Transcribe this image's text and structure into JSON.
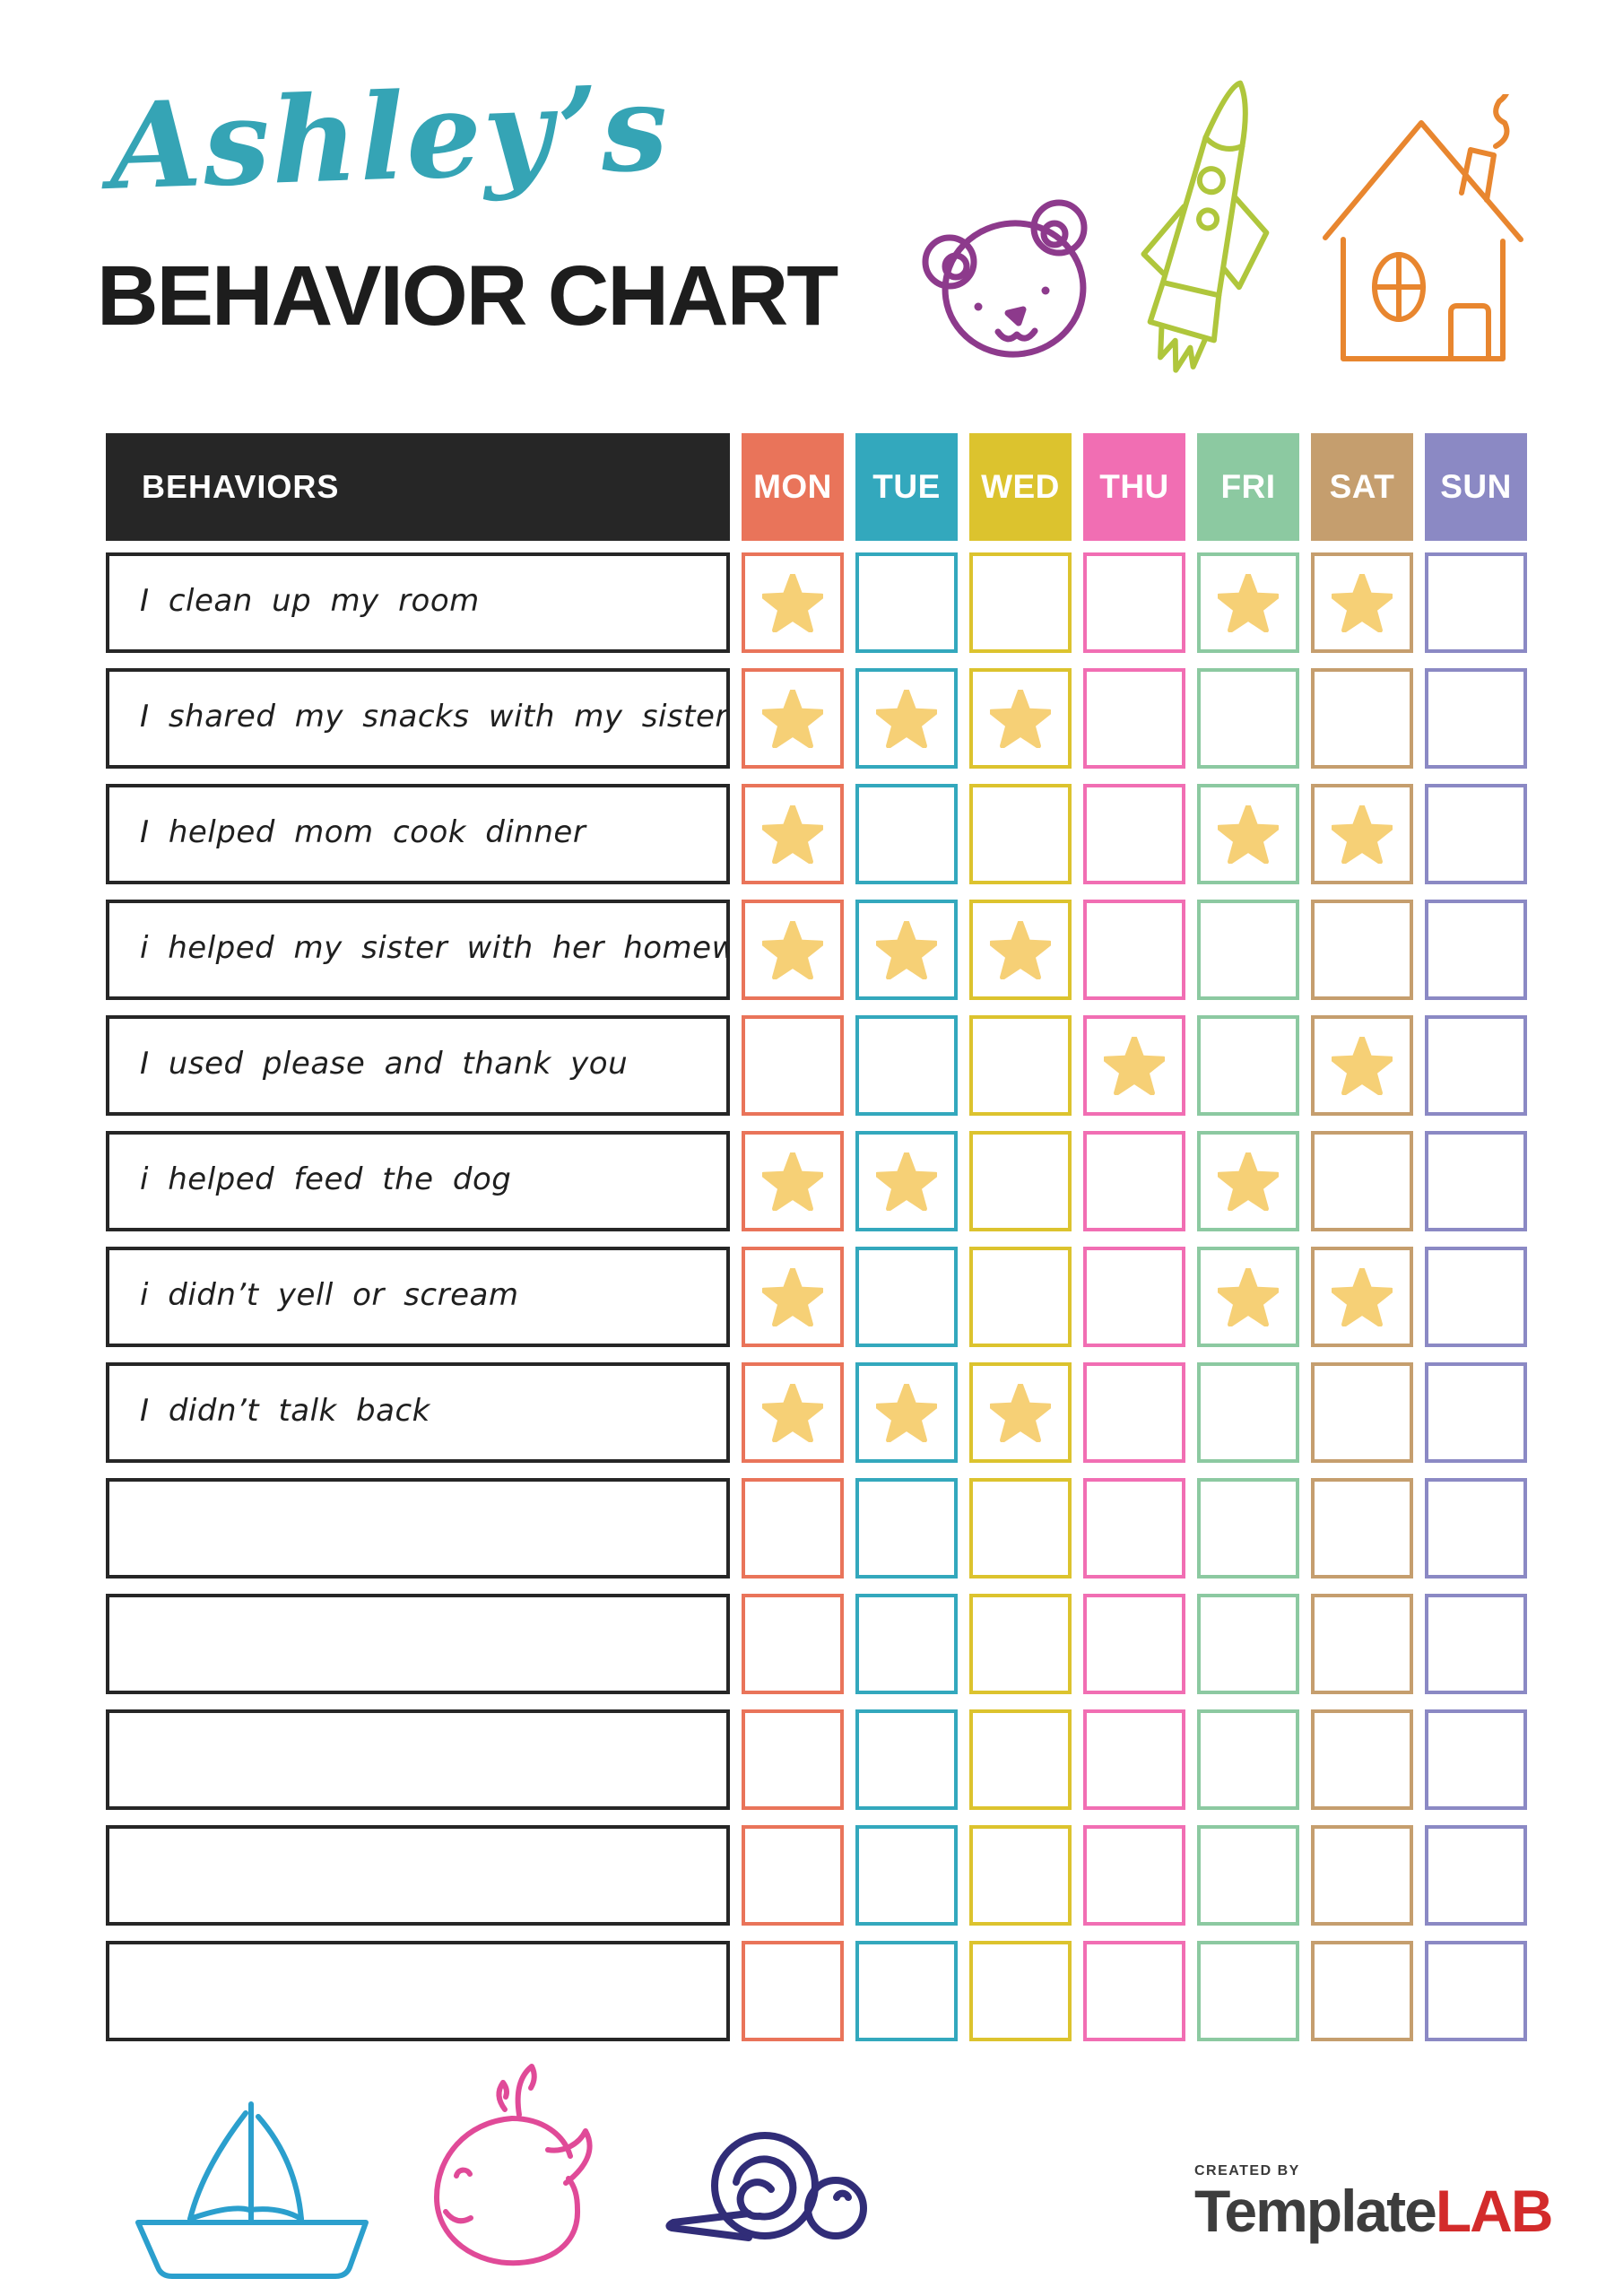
{
  "page": {
    "title_name": "Ashley’s",
    "title_heading": "BEHAVIOR CHART"
  },
  "table": {
    "behaviors_header_label": "BEHAVIORS",
    "header_bg": "#262626",
    "star_color": "#f6d076",
    "days": [
      {
        "label": "MON",
        "color": "#e9745a"
      },
      {
        "label": "TUE",
        "color": "#33a8bd"
      },
      {
        "label": "WED",
        "color": "#dcc32e"
      },
      {
        "label": "THU",
        "color": "#f16eb3"
      },
      {
        "label": "FRI",
        "color": "#8cc9a1"
      },
      {
        "label": "SAT",
        "color": "#c59e6e"
      },
      {
        "label": "SUN",
        "color": "#8b89c4"
      }
    ],
    "rows": [
      {
        "behavior": "I clean up my room",
        "stars": [
          0,
          4,
          5
        ]
      },
      {
        "behavior": "I shared my snacks with my sister",
        "stars": [
          0,
          1,
          2
        ]
      },
      {
        "behavior": "I helped mom cook dinner",
        "stars": [
          0,
          4,
          5
        ]
      },
      {
        "behavior": "i helped my sister with her homework",
        "stars": [
          0,
          1,
          2
        ]
      },
      {
        "behavior": "I used please and thank you",
        "stars": [
          3,
          5
        ]
      },
      {
        "behavior": "i helped feed the dog",
        "stars": [
          0,
          1,
          4
        ]
      },
      {
        "behavior": "i didn’t yell or scream",
        "stars": [
          0,
          4,
          5
        ]
      },
      {
        "behavior": "I didn’t talk back",
        "stars": [
          0,
          1,
          2
        ]
      },
      {
        "behavior": "",
        "stars": []
      },
      {
        "behavior": "",
        "stars": []
      },
      {
        "behavior": "",
        "stars": []
      },
      {
        "behavior": "",
        "stars": []
      },
      {
        "behavior": "",
        "stars": []
      }
    ]
  },
  "decorations": {
    "top_icons": [
      "bear-doodle",
      "rocket-doodle",
      "house-doodle"
    ],
    "bottom_icons": [
      "sailboat-doodle",
      "whale-doodle",
      "snail-doodle"
    ],
    "colors": {
      "title_script": "#35a4b5",
      "bear": "#8d3a8c",
      "rocket": "#afc63c",
      "house": "#e8862f",
      "sailboat": "#2b9fcd",
      "whale": "#e04a98",
      "snail": "#312d78"
    }
  },
  "footer": {
    "created_by": "CREATED BY",
    "brand_primary": "Template",
    "brand_accent": "LAB",
    "brand_accent_color": "#d32b2b"
  }
}
